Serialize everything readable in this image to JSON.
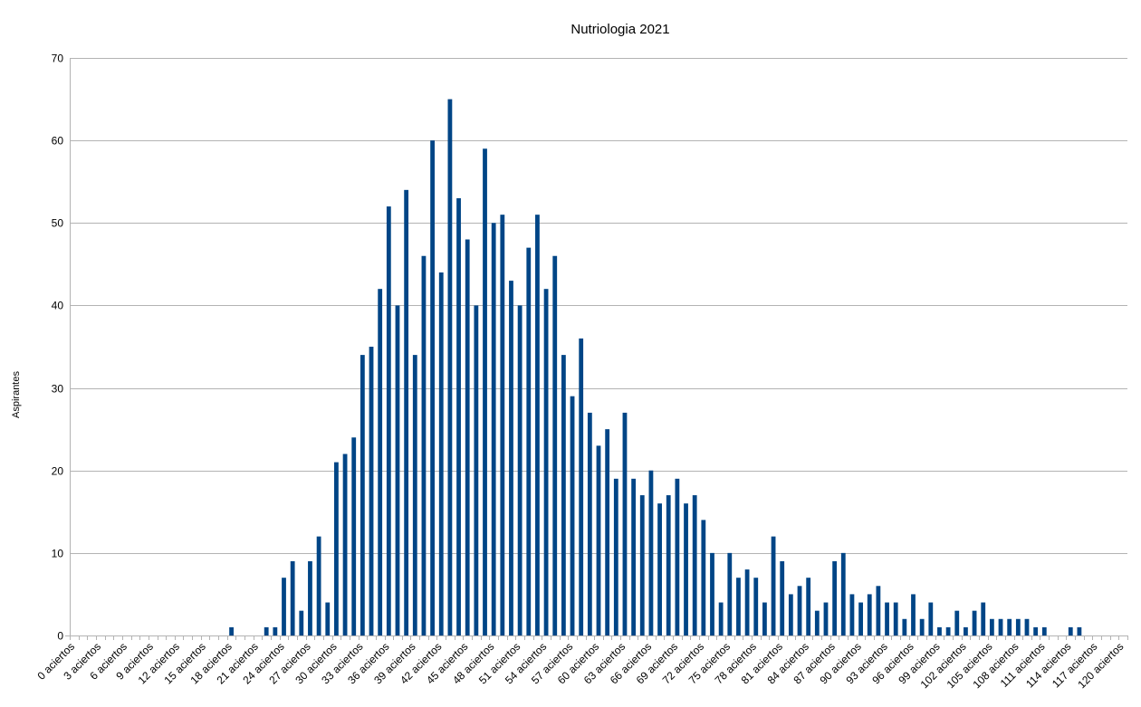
{
  "chart_data": {
    "type": "bar",
    "title": "Nutriologia 2021",
    "xlabel": "",
    "ylabel": "Aspirantes",
    "ylim": [
      0,
      70
    ],
    "yticks": [
      0,
      10,
      20,
      30,
      40,
      50,
      60,
      70
    ],
    "grid": true,
    "legend": "none",
    "bar_color": "#004586",
    "categories": [
      "0 aciertos",
      "1 aciertos",
      "2 aciertos",
      "3 aciertos",
      "4 aciertos",
      "5 aciertos",
      "6 aciertos",
      "7 aciertos",
      "8 aciertos",
      "9 aciertos",
      "10 aciertos",
      "11 aciertos",
      "12 aciertos",
      "13 aciertos",
      "14 aciertos",
      "15 aciertos",
      "16 aciertos",
      "17 aciertos",
      "18 aciertos",
      "19 aciertos",
      "20 aciertos",
      "21 aciertos",
      "22 aciertos",
      "23 aciertos",
      "24 aciertos",
      "25 aciertos",
      "26 aciertos",
      "27 aciertos",
      "28 aciertos",
      "29 aciertos",
      "30 aciertos",
      "31 aciertos",
      "32 aciertos",
      "33 aciertos",
      "34 aciertos",
      "35 aciertos",
      "36 aciertos",
      "37 aciertos",
      "38 aciertos",
      "39 aciertos",
      "40 aciertos",
      "41 aciertos",
      "42 aciertos",
      "43 aciertos",
      "44 aciertos",
      "45 aciertos",
      "46 aciertos",
      "47 aciertos",
      "48 aciertos",
      "49 aciertos",
      "50 aciertos",
      "51 aciertos",
      "52 aciertos",
      "53 aciertos",
      "54 aciertos",
      "55 aciertos",
      "56 aciertos",
      "57 aciertos",
      "58 aciertos",
      "59 aciertos",
      "60 aciertos",
      "61 aciertos",
      "62 aciertos",
      "63 aciertos",
      "64 aciertos",
      "65 aciertos",
      "66 aciertos",
      "67 aciertos",
      "68 aciertos",
      "69 aciertos",
      "70 aciertos",
      "71 aciertos",
      "72 aciertos",
      "73 aciertos",
      "74 aciertos",
      "75 aciertos",
      "76 aciertos",
      "77 aciertos",
      "78 aciertos",
      "79 aciertos",
      "80 aciertos",
      "81 aciertos",
      "82 aciertos",
      "83 aciertos",
      "84 aciertos",
      "85 aciertos",
      "86 aciertos",
      "87 aciertos",
      "88 aciertos",
      "89 aciertos",
      "90 aciertos",
      "91 aciertos",
      "92 aciertos",
      "93 aciertos",
      "94 aciertos",
      "95 aciertos",
      "96 aciertos",
      "97 aciertos",
      "98 aciertos",
      "99 aciertos",
      "100 aciertos",
      "101 aciertos",
      "102 aciertos",
      "103 aciertos",
      "104 aciertos",
      "105 aciertos",
      "106 aciertos",
      "107 aciertos",
      "108 aciertos",
      "109 aciertos",
      "110 aciertos",
      "111 aciertos",
      "112 aciertos",
      "113 aciertos",
      "114 aciertos",
      "115 aciertos",
      "116 aciertos",
      "117 aciertos",
      "118 aciertos",
      "119 aciertos",
      "120 aciertos"
    ],
    "label_every": 3,
    "values": [
      0,
      0,
      0,
      0,
      0,
      0,
      0,
      0,
      0,
      0,
      0,
      0,
      0,
      0,
      0,
      0,
      0,
      0,
      1,
      0,
      0,
      0,
      1,
      1,
      7,
      9,
      3,
      9,
      12,
      4,
      21,
      22,
      24,
      34,
      35,
      42,
      52,
      40,
      54,
      34,
      46,
      60,
      44,
      65,
      53,
      48,
      40,
      59,
      50,
      51,
      43,
      40,
      47,
      51,
      42,
      46,
      34,
      29,
      36,
      27,
      23,
      25,
      19,
      27,
      19,
      17,
      20,
      16,
      17,
      19,
      16,
      17,
      14,
      10,
      4,
      10,
      7,
      8,
      7,
      4,
      12,
      9,
      5,
      6,
      7,
      3,
      4,
      9,
      10,
      5,
      4,
      5,
      6,
      4,
      4,
      2,
      5,
      2,
      4,
      1,
      1,
      3,
      1,
      3,
      4,
      2,
      2,
      2,
      2,
      2,
      1,
      1,
      0,
      0,
      1,
      1,
      0,
      0,
      0,
      0,
      0
    ]
  }
}
